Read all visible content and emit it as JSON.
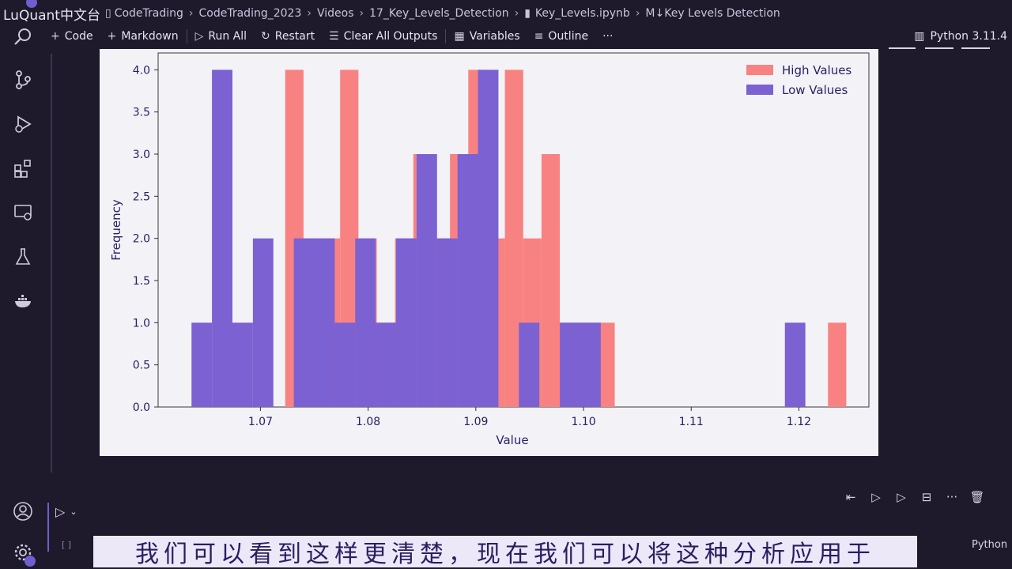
{
  "watermark": "LuQuant中文台",
  "breadcrumb": {
    "items": [
      "CodeTrading",
      "CodeTrading_2023",
      "Videos",
      "17_Key_Levels_Detection",
      "Key_Levels.ipynb",
      "M↓Key Levels Detection"
    ]
  },
  "toolbar": {
    "code": "Code",
    "markdown": "Markdown",
    "run_all": "Run All",
    "restart": "Restart",
    "clear_outputs": "Clear All Outputs",
    "variables": "Variables",
    "outline": "Outline",
    "more": "···"
  },
  "kernel": {
    "label": "Python 3.11.4"
  },
  "cell": {
    "index": "[ ]",
    "language": "Python"
  },
  "subtitle": "我们可以看到这样更清楚，现在我们可以将这种分析应用于",
  "colors": {
    "high": "#f88282",
    "low": "#7b61d1",
    "background": "#1e1a2b",
    "accent": "#6d5fd0"
  },
  "chart_data": {
    "type": "bar",
    "title": "",
    "xlabel": "Value",
    "ylabel": "Frequency",
    "xlim": [
      1.0605,
      1.1265
    ],
    "ylim": [
      0,
      4.2
    ],
    "xticks": [
      "1.07",
      "1.08",
      "1.09",
      "1.10",
      "1.11",
      "1.12"
    ],
    "yticks": [
      "0.0",
      "0.5",
      "1.0",
      "1.5",
      "2.0",
      "2.5",
      "3.0",
      "3.5",
      "4.0"
    ],
    "legend_position": "top-right",
    "series": [
      {
        "name": "High Values",
        "color": "#f88282",
        "bins": [
          {
            "x0": 1.0723,
            "x1": 1.074,
            "count": 4
          },
          {
            "x0": 1.074,
            "x1": 1.0757,
            "count": 2
          },
          {
            "x0": 1.0757,
            "x1": 1.0774,
            "count": 2
          },
          {
            "x0": 1.0774,
            "x1": 1.0791,
            "count": 4
          },
          {
            "x0": 1.0791,
            "x1": 1.0808,
            "count": 2
          },
          {
            "x0": 1.0808,
            "x1": 1.0825,
            "count": 1
          },
          {
            "x0": 1.0825,
            "x1": 1.0842,
            "count": 2
          },
          {
            "x0": 1.0842,
            "x1": 1.0859,
            "count": 3
          },
          {
            "x0": 1.0859,
            "x1": 1.0876,
            "count": 2
          },
          {
            "x0": 1.0876,
            "x1": 1.0893,
            "count": 3
          },
          {
            "x0": 1.0893,
            "x1": 1.091,
            "count": 4
          },
          {
            "x0": 1.091,
            "x1": 1.0927,
            "count": 2
          },
          {
            "x0": 1.0927,
            "x1": 1.0944,
            "count": 4
          },
          {
            "x0": 1.0944,
            "x1": 1.0961,
            "count": 2
          },
          {
            "x0": 1.0961,
            "x1": 1.0978,
            "count": 3
          },
          {
            "x0": 1.0978,
            "x1": 1.0995,
            "count": 1
          },
          {
            "x0": 1.0995,
            "x1": 1.1012,
            "count": 1
          },
          {
            "x0": 1.1012,
            "x1": 1.1029,
            "count": 1
          },
          {
            "x0": 1.1029,
            "x1": 1.1046,
            "count": 0
          },
          {
            "x0": 1.1227,
            "x1": 1.1244,
            "count": 1
          }
        ]
      },
      {
        "name": "Low Values",
        "color": "#7b61d1",
        "bins": [
          {
            "x0": 1.0636,
            "x1": 1.0655,
            "count": 1
          },
          {
            "x0": 1.0655,
            "x1": 1.0674,
            "count": 4
          },
          {
            "x0": 1.0674,
            "x1": 1.0693,
            "count": 1
          },
          {
            "x0": 1.0693,
            "x1": 1.0712,
            "count": 2
          },
          {
            "x0": 1.0712,
            "x1": 1.0731,
            "count": 0
          },
          {
            "x0": 1.0731,
            "x1": 1.075,
            "count": 2
          },
          {
            "x0": 1.075,
            "x1": 1.0769,
            "count": 2
          },
          {
            "x0": 1.0769,
            "x1": 1.0788,
            "count": 1
          },
          {
            "x0": 1.0788,
            "x1": 1.0807,
            "count": 2
          },
          {
            "x0": 1.0807,
            "x1": 1.0826,
            "count": 1
          },
          {
            "x0": 1.0826,
            "x1": 1.0845,
            "count": 2
          },
          {
            "x0": 1.0845,
            "x1": 1.0864,
            "count": 3
          },
          {
            "x0": 1.0864,
            "x1": 1.0883,
            "count": 2
          },
          {
            "x0": 1.0883,
            "x1": 1.0902,
            "count": 3
          },
          {
            "x0": 1.0902,
            "x1": 1.0921,
            "count": 4
          },
          {
            "x0": 1.0921,
            "x1": 1.094,
            "count": 0
          },
          {
            "x0": 1.094,
            "x1": 1.0959,
            "count": 1
          },
          {
            "x0": 1.0959,
            "x1": 1.0978,
            "count": 0
          },
          {
            "x0": 1.0978,
            "x1": 1.0997,
            "count": 1
          },
          {
            "x0": 1.0997,
            "x1": 1.1016,
            "count": 1
          },
          {
            "x0": 1.1187,
            "x1": 1.1206,
            "count": 1
          }
        ]
      }
    ]
  }
}
